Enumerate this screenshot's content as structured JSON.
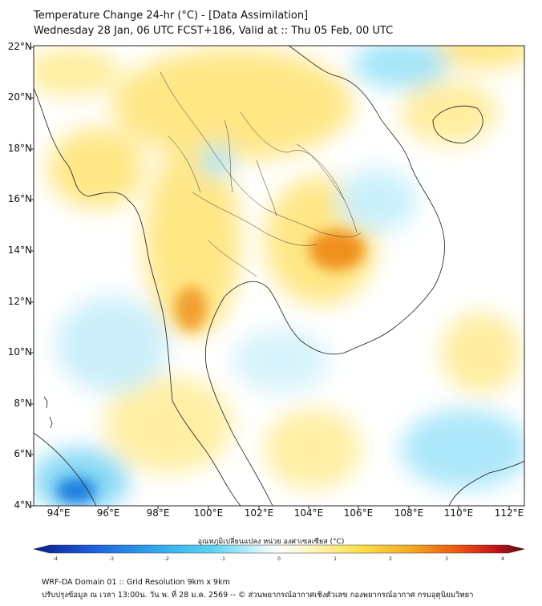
{
  "header": {
    "title_line1": "Temperature Change 24-hr (°C) - [Data Assimilation]",
    "title_line2": "Wednesday 28 Jan, 06 UTC FCST+186, Valid at :: Thu 05 Feb, 00 UTC"
  },
  "axes": {
    "lat_labels": [
      "22°N",
      "20°N",
      "18°N",
      "16°N",
      "14°N",
      "12°N",
      "10°N",
      "8°N",
      "6°N",
      "4°N"
    ],
    "lon_labels": [
      "94°E",
      "96°E",
      "98°E",
      "100°E",
      "102°E",
      "104°E",
      "106°E",
      "108°E",
      "110°E",
      "112°E"
    ]
  },
  "colorbar": {
    "label": "อุณหภูมิเปลี่ยนแปลง หน่วย องศาเซลเซียส (°C)",
    "ticks": [
      "-4",
      "-3",
      "-2",
      "-1",
      "0",
      "1",
      "2",
      "3",
      "4"
    ],
    "colors": {
      "cold": "#0a2a9c",
      "cool": "#3ec8ef",
      "neutral": "#ffffff",
      "warm": "#ffe566",
      "hot": "#f07a16",
      "extreme": "#7a0b10"
    }
  },
  "footer": {
    "line1": "WRF-DA Domain 01 :: Grid Resolution 9km x 9km",
    "line2": "ปรับปรุงข้อมูล ณ เวลา 13:00น. วัน พ. ที่ 28 ม.ค. 2569 -- © ส่วนพยากรณ์อากาศเชิงตัวเลข กองพยากรณ์อากาศ กรมอุตุนิยมวิทยา"
  },
  "map": {
    "lat_range": [
      4,
      22
    ],
    "lon_range": [
      93,
      113
    ],
    "field": "24-hr temperature change"
  }
}
